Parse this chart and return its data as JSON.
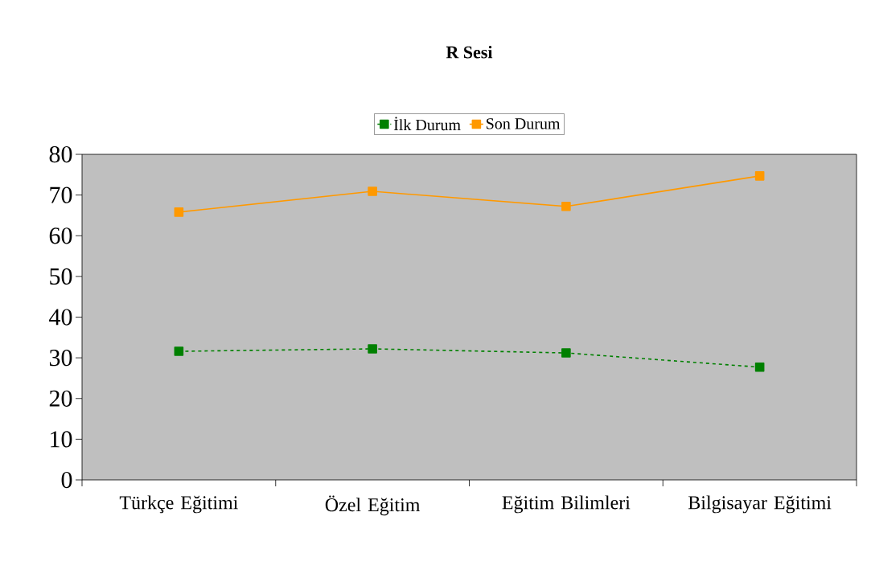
{
  "chart_data": {
    "type": "line",
    "title": "R Sesi",
    "categories": [
      "Türkçe Eğitimi",
      "Özel Eğitim",
      "Eğitim Bilimleri",
      "Bilgisayar Eğitimi"
    ],
    "series": [
      {
        "name": "İlk Durum",
        "color": "#008000",
        "values": [
          31.6,
          32.2,
          31.2,
          27.7
        ],
        "line_style": "dotted"
      },
      {
        "name": "Son Durum",
        "color": "#ff9900",
        "values": [
          65.8,
          70.9,
          67.2,
          74.7
        ],
        "line_style": "solid"
      }
    ],
    "ylim": [
      0,
      80
    ],
    "yticks": [
      0,
      10,
      20,
      30,
      40,
      50,
      60,
      70,
      80
    ],
    "legend": "top",
    "marker": "square"
  }
}
